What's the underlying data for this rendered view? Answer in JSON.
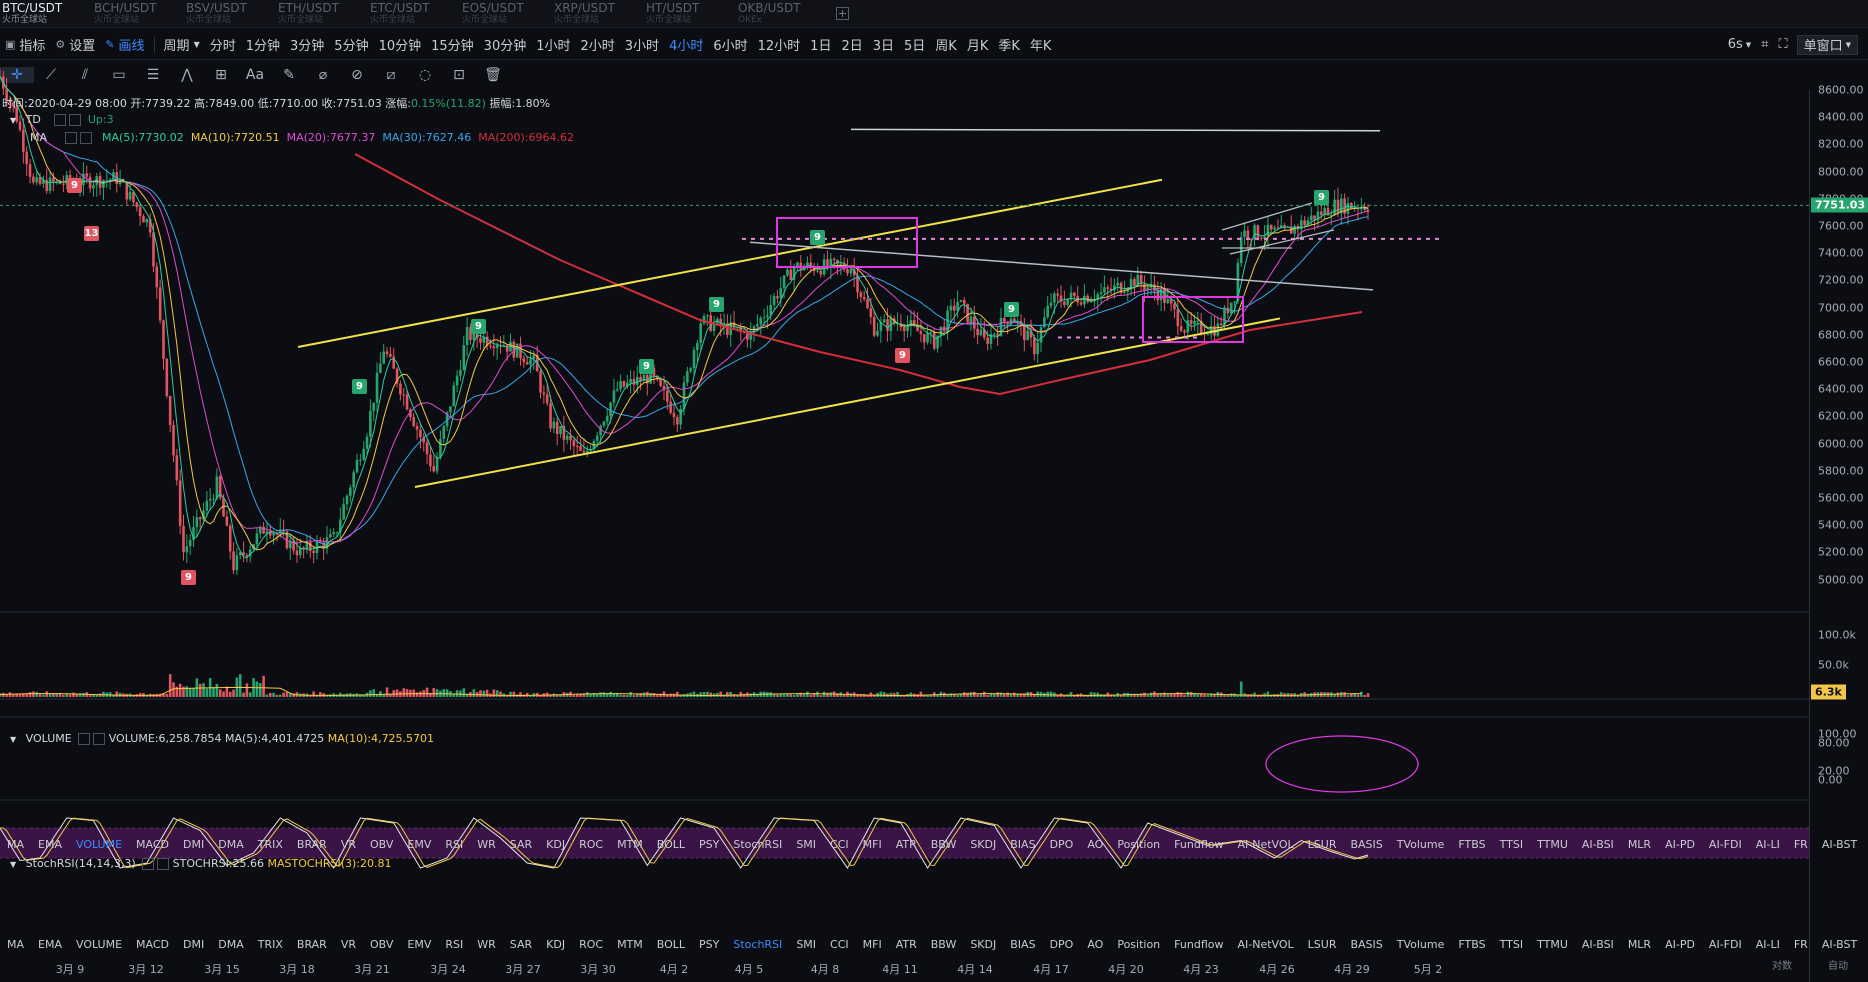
{
  "tabs": [
    {
      "pair": "BTC/USDT",
      "exchange": "火币全球站",
      "active": true
    },
    {
      "pair": "BCH/USDT",
      "exchange": "火币全球站",
      "active": false
    },
    {
      "pair": "BSV/USDT",
      "exchange": "火币全球站",
      "active": false
    },
    {
      "pair": "ETH/USDT",
      "exchange": "火币全球站",
      "active": false
    },
    {
      "pair": "ETC/USDT",
      "exchange": "火币全球站",
      "active": false
    },
    {
      "pair": "EOS/USDT",
      "exchange": "火币全球站",
      "active": false
    },
    {
      "pair": "XRP/USDT",
      "exchange": "火币全球站",
      "active": false
    },
    {
      "pair": "HT/USDT",
      "exchange": "火币全球站",
      "active": false
    },
    {
      "pair": "OKB/USDT",
      "exchange": "OKEx",
      "active": false
    }
  ],
  "add_tab_label": "+",
  "toolbar": {
    "indicator": "指标",
    "settings": "设置",
    "drawing": "画线",
    "period": "周期",
    "periods": [
      "分时",
      "1分钟",
      "3分钟",
      "5分钟",
      "10分钟",
      "15分钟",
      "30分钟",
      "1小时",
      "2小时",
      "3小时",
      "4小时",
      "6小时",
      "12小时",
      "1日",
      "2日",
      "3日",
      "5日",
      "周K",
      "月K",
      "季K",
      "年K"
    ],
    "active_period": "4小时",
    "refresh": "6s",
    "window_mode": "单窗口"
  },
  "draw_tools": [
    "crosshair-icon",
    "line-tool-icon",
    "channel-tool-icon",
    "rect-tool-icon",
    "fib-tool-icon",
    "wave-tool-icon",
    "measure-tool-icon",
    "text-tool-icon",
    "brush-tool-icon",
    "eraser-tool-icon",
    "magnet-tool-icon",
    "ruler-tool-icon",
    "hide-tool-icon",
    "lock-tool-icon",
    "delete-tool-icon"
  ],
  "text_tool_label": "Aa",
  "ohlc": {
    "time_label": "时间:",
    "time": "2020-04-29 08:00",
    "open_label": "开:",
    "open": "7739.22",
    "high_label": "高:",
    "high": "7849.00",
    "low_label": "低:",
    "low": "7710.00",
    "close_label": "收:",
    "close": "7751.03",
    "change_label": "涨幅:",
    "change": "0.15%(11.82)",
    "amplitude_label": "振幅:",
    "amplitude": "1.80%"
  },
  "td": {
    "name": "TD",
    "value": "Up:3"
  },
  "ma": {
    "name": "MA",
    "items": [
      {
        "text": "MA(5):7730.02",
        "color": "#2ecc9a"
      },
      {
        "text": "MA(10):7720.51",
        "color": "#f5c842"
      },
      {
        "text": "MA(20):7677.37",
        "color": "#e04bd0"
      },
      {
        "text": "MA(30):7627.46",
        "color": "#3aa6e8"
      },
      {
        "text": "MA(200):6964.62",
        "color": "#d32f3a"
      }
    ]
  },
  "price_axis": [
    "8600.00",
    "8400.00",
    "8200.00",
    "8000.00",
    "7800.00",
    "7600.00",
    "7400.00",
    "7200.00",
    "7000.00",
    "6800.00",
    "6600.00",
    "6400.00",
    "6200.00",
    "6000.00",
    "5800.00",
    "5600.00",
    "5400.00",
    "5200.00",
    "5000.00"
  ],
  "last_price": "7751.03",
  "volume": {
    "name": "VOLUME",
    "value": "VOLUME:6,258.7854",
    "ma5": "MA(5):4,401.4725",
    "ma10": "MA(10):4,725.5701",
    "axis": [
      "100.0k",
      "50.0k"
    ],
    "tag": "6.3k"
  },
  "indicator_tabs": [
    "MA",
    "EMA",
    "VOLUME",
    "MACD",
    "DMI",
    "DMA",
    "TRIX",
    "BRAR",
    "VR",
    "OBV",
    "EMV",
    "RSI",
    "WR",
    "SAR",
    "KDJ",
    "ROC",
    "MTM",
    "BOLL",
    "PSY",
    "StochRSI",
    "SMI",
    "CCI",
    "MFI",
    "ATR",
    "BBW",
    "SKDJ",
    "BIAS",
    "DPO",
    "AO",
    "Position",
    "Fundflow",
    "AI-NetVOL",
    "LSUR",
    "BASIS",
    "TVolume",
    "FTBS",
    "TTSI",
    "TTMU",
    "AI-BSI",
    "MLR",
    "AI-PD",
    "AI-FDI",
    "AI-LI",
    "FR",
    "AI-BST"
  ],
  "active_indicator_top": "VOLUME",
  "active_indicator_bottom": "StochRSI",
  "stoch": {
    "name": "StochRSI(14,14,3,3)",
    "value": "STOCHRSI:25.66",
    "ma": "MASTOCHRSI(3):20.81",
    "axis": [
      "100.00",
      "80.00",
      "20.00",
      "0.00"
    ]
  },
  "x_axis": [
    "3月 9",
    "3月 12",
    "3月 15",
    "3月 18",
    "3月 21",
    "3月 24",
    "3月 27",
    "3月 30",
    "4月 2",
    "4月 5",
    "4月 8",
    "4月 11",
    "4月 14",
    "4月 17",
    "4月 20",
    "4月 23",
    "4月 26",
    "4月 29",
    "5月 2"
  ],
  "footer": {
    "scale": "对数",
    "auto": "自动"
  },
  "colors": {
    "up": "#26a56e",
    "down": "#e05560",
    "accent": "#3f8cff",
    "ma200": "#d32f3a",
    "trend": "#f0e34a",
    "box": "#e038e0"
  },
  "chart_data": {
    "type": "candlestick",
    "pair": "BTC/USDT",
    "interval": "4小时",
    "ylim": [
      4700,
      8700
    ],
    "keyframes": [
      {
        "t": 0,
        "p": 8700
      },
      {
        "t": 5,
        "p": 8400
      },
      {
        "t": 10,
        "p": 7900
      },
      {
        "t": 35,
        "p": 7950
      },
      {
        "t": 45,
        "p": 7600
      },
      {
        "t": 55,
        "p": 5200
      },
      {
        "t": 65,
        "p": 5700
      },
      {
        "t": 70,
        "p": 5100
      },
      {
        "t": 80,
        "p": 5400
      },
      {
        "t": 90,
        "p": 5200
      },
      {
        "t": 100,
        "p": 5300
      },
      {
        "t": 110,
        "p": 6100
      },
      {
        "t": 115,
        "p": 6700
      },
      {
        "t": 122,
        "p": 6300
      },
      {
        "t": 130,
        "p": 5800
      },
      {
        "t": 140,
        "p": 6800
      },
      {
        "t": 150,
        "p": 6750
      },
      {
        "t": 160,
        "p": 6600
      },
      {
        "t": 165,
        "p": 6150
      },
      {
        "t": 175,
        "p": 5900
      },
      {
        "t": 185,
        "p": 6400
      },
      {
        "t": 195,
        "p": 6500
      },
      {
        "t": 203,
        "p": 6200
      },
      {
        "t": 210,
        "p": 6900
      },
      {
        "t": 225,
        "p": 6800
      },
      {
        "t": 238,
        "p": 7300
      },
      {
        "t": 255,
        "p": 7300
      },
      {
        "t": 262,
        "p": 6850
      },
      {
        "t": 270,
        "p": 6900
      },
      {
        "t": 280,
        "p": 6750
      },
      {
        "t": 287,
        "p": 7050
      },
      {
        "t": 295,
        "p": 6750
      },
      {
        "t": 303,
        "p": 6950
      },
      {
        "t": 310,
        "p": 6700
      },
      {
        "t": 315,
        "p": 7050
      },
      {
        "t": 330,
        "p": 7100
      },
      {
        "t": 340,
        "p": 7200
      },
      {
        "t": 348,
        "p": 7100
      },
      {
        "t": 355,
        "p": 6850
      },
      {
        "t": 365,
        "p": 6850
      },
      {
        "t": 370,
        "p": 7100
      },
      {
        "t": 372,
        "p": 7550
      },
      {
        "t": 385,
        "p": 7550
      },
      {
        "t": 400,
        "p": 7750
      },
      {
        "t": 410,
        "p": 7751
      }
    ],
    "stoch_keyframes": [
      {
        "t": 0,
        "v": 80
      },
      {
        "t": 6,
        "v": 15
      },
      {
        "t": 12,
        "v": 20
      },
      {
        "t": 20,
        "v": 100
      },
      {
        "t": 28,
        "v": 95
      },
      {
        "t": 36,
        "v": 0
      },
      {
        "t": 44,
        "v": 10
      },
      {
        "t": 52,
        "v": 100
      },
      {
        "t": 60,
        "v": 75
      },
      {
        "t": 68,
        "v": 5
      },
      {
        "t": 76,
        "v": 30
      },
      {
        "t": 84,
        "v": 100
      },
      {
        "t": 92,
        "v": 70
      },
      {
        "t": 100,
        "v": 0
      },
      {
        "t": 108,
        "v": 100
      },
      {
        "t": 118,
        "v": 90
      },
      {
        "t": 126,
        "v": 0
      },
      {
        "t": 134,
        "v": 20
      },
      {
        "t": 142,
        "v": 100
      },
      {
        "t": 150,
        "v": 60
      },
      {
        "t": 158,
        "v": 10
      },
      {
        "t": 166,
        "v": 0
      },
      {
        "t": 174,
        "v": 100
      },
      {
        "t": 186,
        "v": 95
      },
      {
        "t": 194,
        "v": 5
      },
      {
        "t": 204,
        "v": 100
      },
      {
        "t": 214,
        "v": 80
      },
      {
        "t": 222,
        "v": 0
      },
      {
        "t": 232,
        "v": 100
      },
      {
        "t": 244,
        "v": 95
      },
      {
        "t": 254,
        "v": 0
      },
      {
        "t": 262,
        "v": 100
      },
      {
        "t": 270,
        "v": 90
      },
      {
        "t": 278,
        "v": 0
      },
      {
        "t": 288,
        "v": 100
      },
      {
        "t": 298,
        "v": 85
      },
      {
        "t": 306,
        "v": 0
      },
      {
        "t": 316,
        "v": 100
      },
      {
        "t": 326,
        "v": 90
      },
      {
        "t": 336,
        "v": 0
      },
      {
        "t": 344,
        "v": 90
      },
      {
        "t": 352,
        "v": 70
      },
      {
        "t": 362,
        "v": 45
      },
      {
        "t": 372,
        "v": 55
      },
      {
        "t": 382,
        "v": 20
      },
      {
        "t": 390,
        "v": 55
      },
      {
        "t": 398,
        "v": 35
      },
      {
        "t": 406,
        "v": 18
      },
      {
        "t": 410,
        "v": 26
      }
    ]
  }
}
